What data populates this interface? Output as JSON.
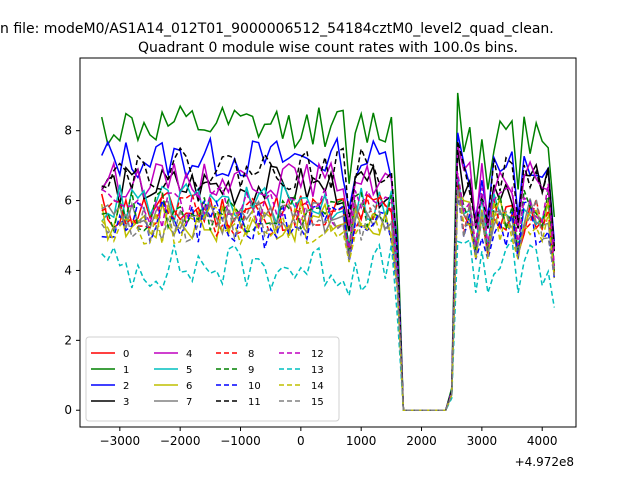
{
  "figure": {
    "suptitle": "n file: modeM0/AS1A14_012T01_9000006512_54184cztM0_level2_quad_clean.",
    "title": "Quadrant 0 module wise count rates with 100.0s bins.",
    "x_offset_label": "+4.972e8"
  },
  "chart_data": {
    "type": "line",
    "title": "Quadrant 0 module wise count rates with 100.0s bins.",
    "xlabel": "",
    "ylabel": "",
    "x_offset": 497200000,
    "xlim": [
      -3660,
      4560
    ],
    "ylim": [
      -0.48,
      10.08
    ],
    "xticks": [
      -3000,
      -2000,
      -1000,
      0,
      1000,
      2000,
      3000,
      4000
    ],
    "yticks": [
      0,
      2,
      4,
      6,
      8
    ],
    "grid": false,
    "legend_position": "lower-left",
    "legend_columns": 4,
    "x_start": -3300,
    "x_step": 100,
    "num_points": 76,
    "series": [
      {
        "name": "0",
        "color": "#ff0000",
        "dash": "solid",
        "base": 5.7,
        "post": 5.6,
        "amp": 0.3,
        "seed": 11
      },
      {
        "name": "1",
        "color": "#008000",
        "dash": "solid",
        "base": 8.1,
        "post": 7.9,
        "amp": 0.3,
        "seed": 12
      },
      {
        "name": "2",
        "color": "#0000ff",
        "dash": "solid",
        "base": 7.2,
        "post": 6.9,
        "amp": 0.3,
        "seed": 13
      },
      {
        "name": "3",
        "color": "#000000",
        "dash": "solid",
        "base": 6.4,
        "post": 6.5,
        "amp": 0.3,
        "seed": 14
      },
      {
        "name": "4",
        "color": "#bf00bf",
        "dash": "solid",
        "base": 6.6,
        "post": 6.6,
        "amp": 0.25,
        "seed": 15
      },
      {
        "name": "5",
        "color": "#00bfbf",
        "dash": "solid",
        "base": 5.9,
        "post": 5.8,
        "amp": 0.3,
        "seed": 16
      },
      {
        "name": "6",
        "color": "#bfbf00",
        "dash": "solid",
        "base": 5.4,
        "post": 5.5,
        "amp": 0.3,
        "seed": 17
      },
      {
        "name": "7",
        "color": "#808080",
        "dash": "solid",
        "base": 5.5,
        "post": 5.6,
        "amp": 0.25,
        "seed": 18
      },
      {
        "name": "8",
        "color": "#ff0000",
        "dash": "dashed",
        "base": 5.6,
        "post": 5.6,
        "amp": 0.3,
        "seed": 19
      },
      {
        "name": "9",
        "color": "#008000",
        "dash": "dashed",
        "base": 5.7,
        "post": 5.7,
        "amp": 0.3,
        "seed": 20
      },
      {
        "name": "10",
        "color": "#0000ff",
        "dash": "dashed",
        "base": 5.3,
        "post": 5.4,
        "amp": 0.35,
        "seed": 21
      },
      {
        "name": "11",
        "color": "#000000",
        "dash": "dashed",
        "base": 6.9,
        "post": 6.7,
        "amp": 0.3,
        "seed": 22
      },
      {
        "name": "12",
        "color": "#bf00bf",
        "dash": "dashed",
        "base": 5.8,
        "post": 5.9,
        "amp": 0.3,
        "seed": 23
      },
      {
        "name": "13",
        "color": "#00bfbf",
        "dash": "dashed",
        "base": 4.1,
        "post": 4.2,
        "amp": 0.35,
        "seed": 24
      },
      {
        "name": "14",
        "color": "#bfbf00",
        "dash": "dashed",
        "base": 5.3,
        "post": 5.4,
        "amp": 0.3,
        "seed": 25
      },
      {
        "name": "15",
        "color": "#808080",
        "dash": "dashed",
        "base": 5.4,
        "post": 5.5,
        "amp": 0.3,
        "seed": 26
      }
    ],
    "zero_gap": {
      "start": 1700,
      "end": 2400,
      "lead_in": 1600,
      "lead_out": 2500
    },
    "dip_at": [
      800,
      2900,
      3100,
      3600
    ],
    "spike_at": 2600
  }
}
